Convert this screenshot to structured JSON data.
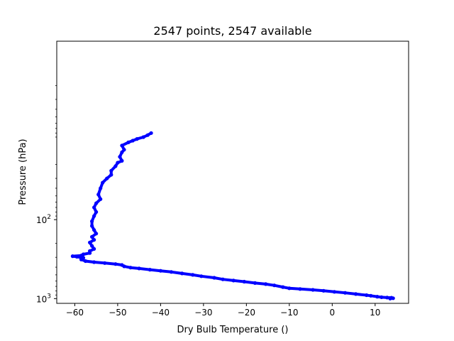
{
  "chart_data": {
    "type": "scatter",
    "title": "2547 points, 2547 available",
    "xlabel": "Dry Bulb Temperature ()",
    "ylabel": "Pressure (hPa)",
    "xlim": [
      -64.2,
      17.8
    ],
    "ylim_log10": [
      3.06,
      -0.26
    ],
    "yscale": "log",
    "y_inverted": true,
    "grid": false,
    "legend": "none",
    "x_ticks": [
      {
        "value": -60,
        "label": "−60"
      },
      {
        "value": -50,
        "label": "−50"
      },
      {
        "value": -40,
        "label": "−40"
      },
      {
        "value": -30,
        "label": "−30"
      },
      {
        "value": -20,
        "label": "−20"
      },
      {
        "value": -10,
        "label": "−10"
      },
      {
        "value": 0,
        "label": "0"
      },
      {
        "value": 10,
        "label": "10"
      }
    ],
    "y_ticks": [
      {
        "value": 100,
        "base": "10",
        "exp": "2"
      },
      {
        "value": 1000,
        "base": "10",
        "exp": "3"
      }
    ],
    "series": [
      {
        "color": "#0000ff",
        "marker": "circle",
        "points": [
          [
            13.5,
            1000
          ],
          [
            14.2,
            990
          ],
          [
            13.8,
            975
          ],
          [
            12.8,
            970
          ],
          [
            11.5,
            960
          ],
          [
            10.5,
            945
          ],
          [
            9.0,
            920
          ],
          [
            8.0,
            905
          ],
          [
            5.5,
            875
          ],
          [
            3.0,
            845
          ],
          [
            0.5,
            820
          ],
          [
            -2.0,
            795
          ],
          [
            -4.5,
            775
          ],
          [
            -7.5,
            755
          ],
          [
            -10.0,
            740
          ],
          [
            -11.5,
            715
          ],
          [
            -13.5,
            680
          ],
          [
            -15.5,
            655
          ],
          [
            -18.0,
            635
          ],
          [
            -20.5,
            610
          ],
          [
            -23.0,
            590
          ],
          [
            -25.5,
            570
          ],
          [
            -27.5,
            545
          ],
          [
            -30.5,
            520
          ],
          [
            -32.5,
            500
          ],
          [
            -35.0,
            480
          ],
          [
            -37.5,
            460
          ],
          [
            -40.0,
            445
          ],
          [
            -42.5,
            430
          ],
          [
            -45.0,
            415
          ],
          [
            -47.0,
            405
          ],
          [
            -48.5,
            390
          ],
          [
            -49.0,
            375
          ],
          [
            -50.5,
            365
          ],
          [
            -53.0,
            355
          ],
          [
            -55.5,
            345
          ],
          [
            -57.5,
            335
          ],
          [
            -58.5,
            320
          ],
          [
            -58.0,
            305
          ],
          [
            -59.5,
            295
          ],
          [
            -60.5,
            290
          ],
          [
            -58.5,
            285
          ],
          [
            -58.0,
            275
          ],
          [
            -56.5,
            265
          ],
          [
            -56.5,
            250
          ],
          [
            -55.5,
            235
          ],
          [
            -56.0,
            215
          ],
          [
            -56.5,
            195
          ],
          [
            -55.5,
            180
          ],
          [
            -56.0,
            165
          ],
          [
            -55.0,
            150
          ],
          [
            -55.5,
            135
          ],
          [
            -56.0,
            120
          ],
          [
            -56.0,
            105
          ],
          [
            -55.5,
            90
          ],
          [
            -55.0,
            80
          ],
          [
            -55.5,
            70
          ],
          [
            -55.0,
            62
          ],
          [
            -54.0,
            55
          ],
          [
            -54.5,
            48
          ],
          [
            -54.0,
            40
          ],
          [
            -53.5,
            34
          ],
          [
            -52.5,
            30
          ],
          [
            -51.5,
            27
          ],
          [
            -51.5,
            24
          ],
          [
            -50.5,
            21
          ],
          [
            -50.0,
            19
          ],
          [
            -49.0,
            18
          ],
          [
            -49.5,
            16
          ],
          [
            -49.0,
            14
          ],
          [
            -48.5,
            13
          ],
          [
            -49.0,
            11.5
          ],
          [
            -47.5,
            10.5
          ],
          [
            -46.5,
            10
          ],
          [
            -45.5,
            9.5
          ],
          [
            -44.0,
            9.0
          ],
          [
            -43.0,
            8.5
          ],
          [
            -42.2,
            8.0
          ]
        ]
      }
    ]
  }
}
